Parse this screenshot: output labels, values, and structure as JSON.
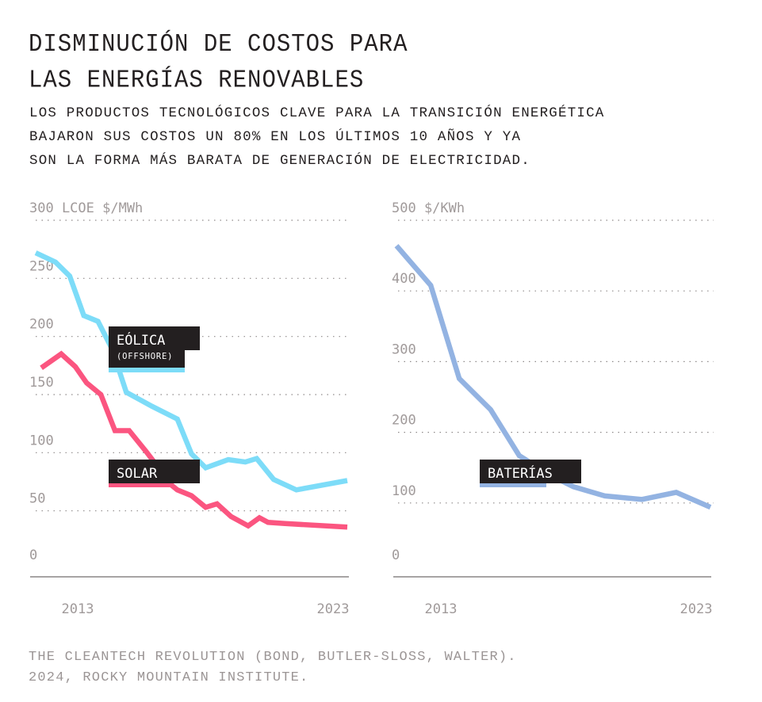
{
  "header": {
    "title_lines": [
      "DISMINUCIÓN DE COSTOS PARA",
      "LAS ENERGÍAS RENOVABLES"
    ],
    "subtitle_lines": [
      "LOS PRODUCTOS TECNOLÓGICOS CLAVE PARA LA TRANSICIÓN ENERGÉTICA",
      "BAJARON SUS COSTOS UN 80% EN LOS ÚLTIMOS 10 AÑOS Y YA",
      "SON LA FORMA MÁS BARATA DE GENERACIÓN DE ELECTRICIDAD."
    ]
  },
  "source_lines": [
    "THE CLEANTECH REVOLUTION (BOND, BUTLER-SLOSS, WALTER).",
    "2024, ROCKY MOUNTAIN INSTITUTE."
  ],
  "colors": {
    "wind": "#7ddcf8",
    "solar": "#fb5580",
    "batteries": "#93b3e2",
    "label_bg": "#231f20",
    "tick_text": "#a09a9a"
  },
  "chart_data": [
    {
      "type": "line",
      "title": "",
      "ylabel": "LCOE $/MWh",
      "unit_label": "300 LCOE $/MWh",
      "ylim": [
        0,
        300
      ],
      "yticks": [
        0,
        50,
        100,
        150,
        200,
        250,
        300
      ],
      "ytick_labels": [
        "0",
        "50",
        "100",
        "150",
        "200",
        "250",
        "300 LCOE $/MWh"
      ],
      "xlim": [
        2012,
        2023
      ],
      "xtick_labels": [
        "2013",
        "2023"
      ],
      "grid": true,
      "legend": "inline-labels",
      "series": [
        {
          "name": "EÓLICA",
          "sublabel": "(OFFSHORE)",
          "color": "#7ddcf8",
          "x": [
            2012,
            2012.7,
            2013.2,
            2013.7,
            2014.2,
            2014.7,
            2015.2,
            2016.1,
            2017.0,
            2017.5,
            2018.0,
            2018.8,
            2019.4,
            2019.8,
            2020.4,
            2021.2,
            2023
          ],
          "values": [
            272,
            264,
            252,
            218,
            213,
            189,
            152,
            140,
            129,
            99,
            87,
            94,
            92,
            95,
            77,
            68,
            76
          ]
        },
        {
          "name": "SOLAR",
          "color": "#fb5580",
          "x": [
            2012.2,
            2012.9,
            2013.4,
            2013.8,
            2014.3,
            2014.8,
            2015.3,
            2015.9,
            2016.4,
            2016.7,
            2017.0,
            2017.5,
            2018.0,
            2018.4,
            2018.9,
            2019.5,
            2019.9,
            2020.2,
            2020.8,
            2023
          ],
          "values": [
            173,
            185,
            174,
            160,
            150,
            119,
            119,
            101,
            85,
            74,
            68,
            63,
            53,
            56,
            45,
            37,
            44,
            40,
            39,
            36
          ]
        }
      ]
    },
    {
      "type": "line",
      "title": "",
      "ylabel": "$/KWh",
      "unit_label": "500 $/KWh",
      "ylim": [
        0,
        500
      ],
      "yticks": [
        0,
        100,
        200,
        300,
        400,
        500
      ],
      "ytick_labels": [
        "0",
        "100",
        "200",
        "300",
        "400",
        "500 $/KWh"
      ],
      "xlim": [
        2012,
        2023
      ],
      "xtick_labels": [
        "2013",
        "2023"
      ],
      "grid": true,
      "legend": "inline-labels",
      "series": [
        {
          "name": "BATERÍAS",
          "color": "#93b3e2",
          "x": [
            2012,
            2013.2,
            2014.2,
            2015.3,
            2016.3,
            2017.4,
            2018.2,
            2019.3,
            2020.6,
            2021.8,
            2023
          ],
          "values": [
            464,
            408,
            276,
            232,
            167,
            139,
            123,
            110,
            105,
            115,
            94
          ]
        }
      ]
    }
  ]
}
